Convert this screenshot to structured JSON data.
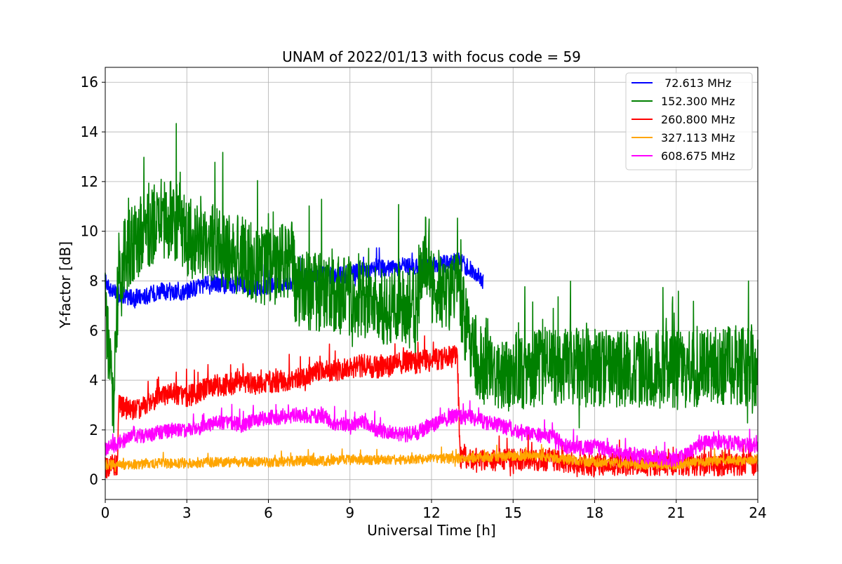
{
  "chart_data": {
    "type": "line",
    "title": "UNAM of 2022/01/13 with focus code = 59",
    "xlabel": "Universal Time [h]",
    "ylabel": "Y-factor [dB]",
    "xlim": [
      0,
      24
    ],
    "ylim": [
      -0.8,
      16.6
    ],
    "xticks": [
      0,
      3,
      6,
      9,
      12,
      15,
      18,
      21,
      24
    ],
    "xtick_labels": [
      "0",
      "3",
      "6",
      "9",
      "12",
      "15",
      "18",
      "21",
      "24"
    ],
    "yticks": [
      0,
      2,
      4,
      6,
      8,
      10,
      12,
      14,
      16
    ],
    "ytick_labels": [
      "0",
      "2",
      "4",
      "6",
      "8",
      "10",
      "12",
      "14",
      "16"
    ],
    "grid": true,
    "legend_position": "top-right",
    "series": [
      {
        "name": " 72.613 MHz",
        "color": "#0000ff",
        "x": [
          0,
          0.2,
          0.5,
          1,
          1.5,
          2,
          2.5,
          3,
          3.5,
          4,
          4.5,
          5,
          5.5,
          6,
          6.5,
          7,
          7.5,
          8,
          8.5,
          9,
          9.5,
          10,
          10.5,
          11,
          11.5,
          12,
          12.5,
          13,
          13.5,
          13.9
        ],
        "y": [
          8.0,
          7.6,
          7.5,
          7.3,
          7.4,
          7.6,
          7.5,
          7.6,
          7.8,
          7.9,
          7.8,
          7.9,
          7.7,
          7.8,
          7.9,
          8.0,
          8.2,
          8.3,
          8.2,
          8.3,
          8.4,
          8.5,
          8.5,
          8.6,
          8.6,
          8.7,
          8.7,
          8.8,
          8.4,
          8.0
        ],
        "amp": 0.35
      },
      {
        "name": "152.300 MHz",
        "color": "#008000",
        "x": [
          0,
          0.3,
          0.5,
          1,
          1.5,
          2,
          2.5,
          3,
          3.5,
          4,
          4.5,
          5,
          5.5,
          6,
          6.5,
          6.9,
          7,
          7.5,
          8,
          8.5,
          9,
          9.5,
          10,
          10.5,
          11,
          11.5,
          11.7,
          12,
          12.5,
          13,
          13.5,
          14,
          15,
          16,
          17,
          18,
          19,
          20,
          21,
          22,
          23,
          24
        ],
        "y": [
          7.0,
          3.0,
          8.5,
          9.5,
          10.0,
          10.5,
          10.5,
          9.8,
          9.5,
          9.5,
          9.2,
          9.0,
          8.7,
          8.6,
          8.7,
          9.0,
          7.6,
          7.6,
          7.5,
          7.5,
          7.4,
          7.2,
          7.1,
          7.0,
          6.9,
          7.0,
          9.5,
          7.8,
          7.6,
          7.5,
          5.0,
          4.5,
          4.3,
          4.6,
          4.5,
          4.5,
          4.4,
          4.5,
          4.4,
          4.5,
          4.6,
          4.5
        ],
        "amp": 1.6
      },
      {
        "name": "260.800 MHz",
        "color": "#ff0000",
        "x": [
          0,
          0.45,
          0.5,
          1,
          1.5,
          2,
          2.5,
          3,
          3.5,
          4,
          4.5,
          5,
          5.5,
          6,
          6.5,
          7,
          7.5,
          8,
          8.5,
          9,
          9.5,
          10,
          10.5,
          11,
          11.5,
          12,
          12.5,
          12.95,
          13.05,
          14,
          15,
          16,
          17,
          18,
          19,
          20,
          21,
          22,
          23,
          24
        ],
        "y": [
          0.5,
          0.6,
          3.0,
          2.8,
          3.0,
          3.4,
          3.5,
          3.3,
          3.6,
          3.8,
          3.8,
          4.0,
          3.8,
          3.9,
          4.0,
          4.0,
          4.2,
          4.4,
          4.4,
          4.5,
          4.6,
          4.5,
          4.6,
          4.7,
          4.8,
          4.8,
          4.9,
          5.0,
          0.9,
          0.8,
          0.8,
          0.8,
          0.7,
          0.6,
          0.6,
          0.6,
          0.6,
          0.6,
          0.6,
          0.6
        ],
        "amp": 0.45
      },
      {
        "name": "327.113 MHz",
        "color": "#ffa500",
        "x": [
          0,
          1,
          2,
          3,
          4,
          5,
          6,
          7,
          8,
          9,
          10,
          11,
          12,
          13,
          14,
          15,
          16,
          17,
          18,
          19,
          20,
          21,
          22,
          23,
          24
        ],
        "y": [
          0.6,
          0.6,
          0.65,
          0.65,
          0.7,
          0.7,
          0.7,
          0.75,
          0.75,
          0.8,
          0.8,
          0.8,
          0.85,
          0.85,
          0.9,
          0.95,
          0.95,
          0.8,
          0.7,
          0.65,
          0.6,
          0.6,
          0.7,
          0.8,
          0.75
        ],
        "amp": 0.2
      },
      {
        "name": "608.675 MHz",
        "color": "#ff00ff",
        "x": [
          0,
          0.5,
          1,
          1.5,
          2,
          2.5,
          3,
          3.5,
          4,
          4.5,
          5,
          5.5,
          6,
          6.5,
          7,
          7.5,
          8,
          8.5,
          9,
          9.5,
          10,
          10.5,
          11,
          11.5,
          12,
          12.5,
          13,
          13.5,
          14,
          14.5,
          15,
          15.5,
          16,
          16.5,
          17,
          18,
          19,
          20,
          21,
          22,
          23,
          24
        ],
        "y": [
          1.2,
          1.5,
          1.7,
          1.8,
          1.9,
          2.0,
          2.0,
          2.1,
          2.3,
          2.3,
          2.2,
          2.4,
          2.5,
          2.5,
          2.6,
          2.5,
          2.6,
          2.2,
          2.2,
          2.3,
          2.0,
          1.9,
          1.8,
          1.9,
          2.2,
          2.4,
          2.6,
          2.5,
          2.3,
          2.2,
          2.0,
          1.9,
          1.8,
          1.7,
          1.3,
          1.3,
          1.1,
          0.9,
          0.8,
          1.5,
          1.5,
          1.3
        ],
        "amp": 0.3
      }
    ]
  }
}
